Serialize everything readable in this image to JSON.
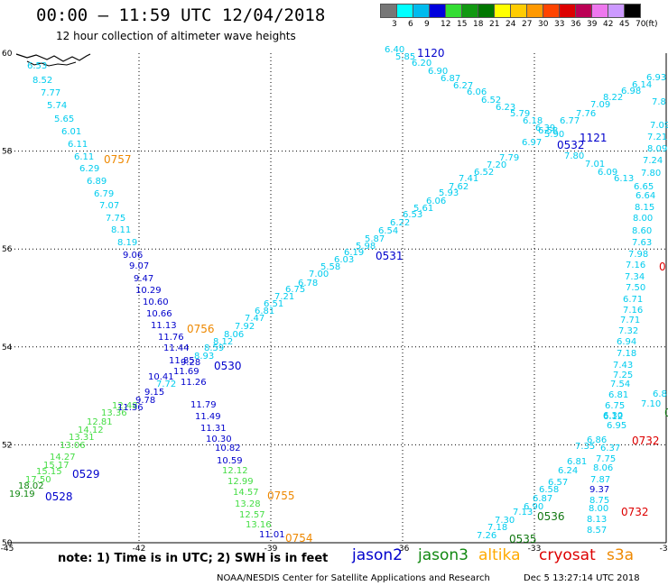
{
  "header": {
    "title": "00:00 – 11:59 UTC 12/04/2018",
    "subtitle": "12 hour collection of altimeter wave heights"
  },
  "legend": {
    "unit": "(ft)",
    "bins": [
      {
        "label": "3",
        "color": "#777777"
      },
      {
        "label": "6",
        "color": "#00ffff"
      },
      {
        "label": "9",
        "color": "#00bbee"
      },
      {
        "label": "12",
        "color": "#0000dd"
      },
      {
        "label": "15",
        "color": "#33dd33"
      },
      {
        "label": "18",
        "color": "#119911"
      },
      {
        "label": "21",
        "color": "#007700"
      },
      {
        "label": "24",
        "color": "#ffff00"
      },
      {
        "label": "27",
        "color": "#ffcc00"
      },
      {
        "label": "30",
        "color": "#ff9900"
      },
      {
        "label": "33",
        "color": "#ff4400"
      },
      {
        "label": "36",
        "color": "#dd0000"
      },
      {
        "label": "39",
        "color": "#bb0055"
      },
      {
        "label": "42",
        "color": "#ee77ee"
      },
      {
        "label": "45",
        "color": "#cc99ff"
      },
      {
        "label": "70",
        "color": "#000000"
      }
    ]
  },
  "axes": {
    "x_ticks": [
      "-45",
      "-42",
      "-39",
      "-36",
      "-33",
      "-30"
    ],
    "y_ticks": [
      "60",
      "58",
      "56",
      "54",
      "52",
      "50"
    ]
  },
  "tracks": [
    {
      "name": "track-nw-se",
      "points": [
        {
          "v": "6.53",
          "c": "#00ccee"
        },
        {
          "v": "8.52",
          "c": "#00ccee"
        },
        {
          "v": "7.77",
          "c": "#00ccee"
        },
        {
          "v": "5.74",
          "c": "#00ccee"
        },
        {
          "v": "5.65",
          "c": "#00ccee"
        },
        {
          "v": "6.01",
          "c": "#00ccee"
        },
        {
          "v": "6.11",
          "c": "#00ccee"
        },
        {
          "v": "6.11",
          "c": "#00ccee"
        },
        {
          "v": "6.29",
          "c": "#00ccee"
        },
        {
          "v": "6.89",
          "c": "#00ccee"
        },
        {
          "v": "6.79",
          "c": "#00ccee"
        },
        {
          "v": "7.07",
          "c": "#00ccee"
        },
        {
          "v": "7.75",
          "c": "#00ccee"
        },
        {
          "v": "8.11",
          "c": "#00ccee"
        },
        {
          "v": "8.19",
          "c": "#00ccee"
        },
        {
          "v": "9.06",
          "c": "#0000cc"
        },
        {
          "v": "9.07",
          "c": "#0000cc"
        },
        {
          "v": "9.47",
          "c": "#0000cc"
        },
        {
          "v": "10.29",
          "c": "#0000cc"
        },
        {
          "v": "10.60",
          "c": "#0000cc"
        },
        {
          "v": "10.66",
          "c": "#0000cc"
        },
        {
          "v": "11.13",
          "c": "#0000cc"
        },
        {
          "v": "11.76",
          "c": "#0000cc"
        },
        {
          "v": "11.44",
          "c": "#0000cc"
        },
        {
          "v": "11.85",
          "c": "#0000cc"
        },
        {
          "v": "11.69",
          "c": "#0000cc"
        },
        {
          "v": "11.26",
          "c": "#0000cc"
        },
        {
          "v": "11.79",
          "c": "#0000cc"
        },
        {
          "v": "11.49",
          "c": "#0000cc"
        },
        {
          "v": "11.31",
          "c": "#0000cc"
        },
        {
          "v": "10.30",
          "c": "#0000cc"
        },
        {
          "v": "10.82",
          "c": "#0000cc"
        },
        {
          "v": "10.59",
          "c": "#0000cc"
        },
        {
          "v": "12.12",
          "c": "#44dd44"
        },
        {
          "v": "12.99",
          "c": "#44dd44"
        },
        {
          "v": "14.57",
          "c": "#44dd44"
        },
        {
          "v": "13.28",
          "c": "#44dd44"
        },
        {
          "v": "12.57",
          "c": "#44dd44"
        },
        {
          "v": "13.16",
          "c": "#44dd44"
        },
        {
          "v": "11.01",
          "c": "#0000cc"
        }
      ]
    },
    {
      "name": "track-sw-ne",
      "points": [
        {
          "v": "19.19",
          "c": "#118811"
        },
        {
          "v": "18.02",
          "c": "#118811"
        },
        {
          "v": "17.50",
          "c": "#44dd44"
        },
        {
          "v": "15.15",
          "c": "#44dd44"
        },
        {
          "v": "15.17",
          "c": "#44dd44"
        },
        {
          "v": "14.27",
          "c": "#44dd44"
        },
        {
          "v": "13.06",
          "c": "#44dd44"
        },
        {
          "v": "13.31",
          "c": "#44dd44"
        },
        {
          "v": "14.12",
          "c": "#44dd44"
        },
        {
          "v": "12.81",
          "c": "#44dd44"
        },
        {
          "v": "13.36",
          "c": "#44dd44"
        },
        {
          "v": "12.48",
          "c": "#44dd44"
        },
        {
          "v": "11.36",
          "c": "#0000cc"
        },
        {
          "v": "9.78",
          "c": "#0000cc"
        },
        {
          "v": "9.15",
          "c": "#0000cc"
        },
        {
          "v": "10.41",
          "c": "#0000cc"
        },
        {
          "v": "7.72",
          "c": "#00ccee"
        },
        {
          "v": "9.28",
          "c": "#0000cc"
        },
        {
          "v": "8.93",
          "c": "#00ccee"
        },
        {
          "v": "8.59",
          "c": "#00ccee"
        },
        {
          "v": "8.12",
          "c": "#00ccee"
        },
        {
          "v": "8.06",
          "c": "#00ccee"
        },
        {
          "v": "7.92",
          "c": "#00ccee"
        },
        {
          "v": "7.47",
          "c": "#00ccee"
        },
        {
          "v": "6.81",
          "c": "#00ccee"
        },
        {
          "v": "6.51",
          "c": "#00ccee"
        },
        {
          "v": "7.21",
          "c": "#00ccee"
        },
        {
          "v": "6.75",
          "c": "#00ccee"
        },
        {
          "v": "6.78",
          "c": "#00ccee"
        },
        {
          "v": "7.00",
          "c": "#00ccee"
        },
        {
          "v": "5.58",
          "c": "#00ccee"
        },
        {
          "v": "6.03",
          "c": "#00ccee"
        },
        {
          "v": "6.19",
          "c": "#00ccee"
        },
        {
          "v": "5.98",
          "c": "#00ccee"
        },
        {
          "v": "5.87",
          "c": "#00ccee"
        },
        {
          "v": "6.54",
          "c": "#00ccee"
        },
        {
          "v": "6.22",
          "c": "#00ccee"
        },
        {
          "v": "6.53",
          "c": "#00ccee"
        },
        {
          "v": "5.61",
          "c": "#00ccee"
        },
        {
          "v": "6.06",
          "c": "#00ccee"
        },
        {
          "v": "5.93",
          "c": "#00ccee"
        },
        {
          "v": "7.62",
          "c": "#00ccee"
        },
        {
          "v": "7.41",
          "c": "#00ccee"
        },
        {
          "v": "6.52",
          "c": "#00ccee"
        },
        {
          "v": "7.20",
          "c": "#00ccee"
        },
        {
          "v": "7.79",
          "c": "#00ccee"
        },
        {
          "v": "6.97",
          "c": "#00ccee"
        },
        {
          "v": "6.58",
          "c": "#00ccee"
        },
        {
          "v": "6.77",
          "c": "#00ccee"
        },
        {
          "v": "7.76",
          "c": "#00ccee"
        },
        {
          "v": "7.09",
          "c": "#00ccee"
        },
        {
          "v": "8.22",
          "c": "#00ccee"
        },
        {
          "v": "6.98",
          "c": "#00ccee"
        },
        {
          "v": "6.14",
          "c": "#00ccee"
        },
        {
          "v": "6.93",
          "c": "#00ccee"
        }
      ]
    },
    {
      "name": "track-top-descending",
      "points": [
        {
          "v": "6.40",
          "c": "#00ccee"
        },
        {
          "v": "5.85",
          "c": "#00ccee"
        },
        {
          "v": "6.20",
          "c": "#00ccee"
        },
        {
          "v": "6.90",
          "c": "#00ccee"
        },
        {
          "v": "6.87",
          "c": "#00ccee"
        },
        {
          "v": "6.27",
          "c": "#00ccee"
        },
        {
          "v": "6.06",
          "c": "#00ccee"
        },
        {
          "v": "6.52",
          "c": "#00ccee"
        },
        {
          "v": "6.23",
          "c": "#00ccee"
        },
        {
          "v": "5.79",
          "c": "#00ccee"
        },
        {
          "v": "6.18",
          "c": "#00ccee"
        },
        {
          "v": "6.39",
          "c": "#00ccee"
        },
        {
          "v": "5.90",
          "c": "#00ccee"
        },
        {
          "v": "7.80",
          "c": "#00ccee"
        },
        {
          "v": "7.01",
          "c": "#00ccee"
        },
        {
          "v": "6.09",
          "c": "#00ccee"
        },
        {
          "v": "6.13",
          "c": "#00ccee"
        },
        {
          "v": "6.65",
          "c": "#00ccee"
        }
      ]
    },
    {
      "name": "track-east-column",
      "points": [
        {
          "v": "7.8",
          "c": "#00ccee"
        },
        {
          "v": "7.09",
          "c": "#00ccee"
        },
        {
          "v": "7.21",
          "c": "#00ccee"
        },
        {
          "v": "8.09",
          "c": "#00ccee"
        },
        {
          "v": "7.24",
          "c": "#00ccee"
        },
        {
          "v": "7.80",
          "c": "#00ccee"
        },
        {
          "v": "6.64",
          "c": "#00ccee"
        },
        {
          "v": "8.15",
          "c": "#00ccee"
        },
        {
          "v": "8.00",
          "c": "#00ccee"
        },
        {
          "v": "8.60",
          "c": "#00ccee"
        },
        {
          "v": "7.63",
          "c": "#00ccee"
        },
        {
          "v": "7.98",
          "c": "#00ccee"
        },
        {
          "v": "7.16",
          "c": "#00ccee"
        },
        {
          "v": "7.34",
          "c": "#00ccee"
        },
        {
          "v": "7.50",
          "c": "#00ccee"
        },
        {
          "v": "6.71",
          "c": "#00ccee"
        },
        {
          "v": "7.16",
          "c": "#00ccee"
        },
        {
          "v": "7.71",
          "c": "#00ccee"
        },
        {
          "v": "7.32",
          "c": "#00ccee"
        },
        {
          "v": "6.94",
          "c": "#00ccee"
        },
        {
          "v": "7.18",
          "c": "#00ccee"
        },
        {
          "v": "7.43",
          "c": "#00ccee"
        },
        {
          "v": "7.25",
          "c": "#00ccee"
        },
        {
          "v": "7.54",
          "c": "#00ccee"
        },
        {
          "v": "6.81",
          "c": "#00ccee"
        },
        {
          "v": "6.75",
          "c": "#00ccee"
        },
        {
          "v": "6.12",
          "c": "#00ccee"
        },
        {
          "v": "6.95",
          "c": "#00ccee"
        },
        {
          "v": "6.37",
          "c": "#00ccee"
        },
        {
          "v": "7.75",
          "c": "#00ccee"
        },
        {
          "v": "8.06",
          "c": "#00ccee"
        },
        {
          "v": "7.87",
          "c": "#00ccee"
        },
        {
          "v": "9.37",
          "c": "#0000cc"
        },
        {
          "v": "8.75",
          "c": "#00ccee"
        },
        {
          "v": "8.00",
          "c": "#00ccee"
        },
        {
          "v": "8.13",
          "c": "#00ccee"
        },
        {
          "v": "8.57",
          "c": "#00ccee"
        }
      ]
    },
    {
      "name": "track-se-ascending",
      "points": [
        {
          "v": "7.26",
          "c": "#00ccee"
        },
        {
          "v": "7.18",
          "c": "#00ccee"
        },
        {
          "v": "7.30",
          "c": "#00ccee"
        },
        {
          "v": "7.13",
          "c": "#00ccee"
        },
        {
          "v": "6.90",
          "c": "#00ccee"
        },
        {
          "v": "6.87",
          "c": "#00ccee"
        },
        {
          "v": "6.58",
          "c": "#00ccee"
        },
        {
          "v": "6.57",
          "c": "#00ccee"
        },
        {
          "v": "6.24",
          "c": "#00ccee"
        },
        {
          "v": "6.81",
          "c": "#00ccee"
        },
        {
          "v": "7.35",
          "c": "#00ccee"
        },
        {
          "v": "6.86",
          "c": "#00ccee"
        },
        {
          "v": "6.30",
          "c": "#00ccee"
        },
        {
          "v": "7.10",
          "c": "#00ccee"
        },
        {
          "v": "6.8",
          "c": "#00ccee"
        }
      ]
    }
  ],
  "time_labels": [
    {
      "v": "1120",
      "c": "#0000cc"
    },
    {
      "v": "0757",
      "c": "#ee8800"
    },
    {
      "v": "0532",
      "c": "#0000cc"
    },
    {
      "v": "1121",
      "c": "#0000cc"
    },
    {
      "v": "0531",
      "c": "#0000cc"
    },
    {
      "v": "0756",
      "c": "#ee8800"
    },
    {
      "v": "0530",
      "c": "#0000cc"
    },
    {
      "v": "0529",
      "c": "#0000cc"
    },
    {
      "v": "0528",
      "c": "#0000cc"
    },
    {
      "v": "0755",
      "c": "#ee8800"
    },
    {
      "v": "0754",
      "c": "#ee8800"
    },
    {
      "v": "0536",
      "c": "#117711"
    },
    {
      "v": "0535",
      "c": "#117711"
    },
    {
      "v": "0732",
      "c": "#dd0000"
    },
    {
      "v": "0732",
      "c": "#dd0000"
    },
    {
      "v": "0",
      "c": "#dd0000"
    },
    {
      "v": "0",
      "c": "#117711"
    }
  ],
  "footer": {
    "note": "note: 1) Time is in UTC; 2) SWH is in feet",
    "satellites": [
      {
        "name": "jason2",
        "color": "#0000cc"
      },
      {
        "name": "jason3",
        "color": "#118811"
      },
      {
        "name": "altika",
        "color": "#ffaa00"
      },
      {
        "name": "cryosat",
        "color": "#dd0000"
      },
      {
        "name": "s3a",
        "color": "#ee8800"
      }
    ],
    "credit": "NOAA/NESDIS Center for Satellite Applications and Research",
    "generated": "Dec  5 13:27:14 UTC 2018"
  }
}
